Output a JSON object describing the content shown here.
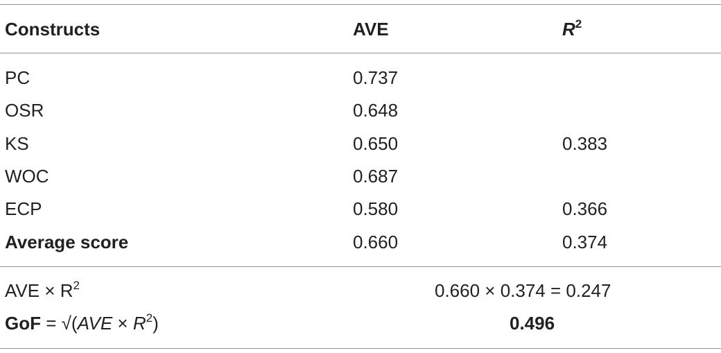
{
  "header": {
    "col1": "Constructs",
    "col2": "AVE",
    "col3_base": "R",
    "col3_sup": "2"
  },
  "rows": [
    {
      "construct": "PC",
      "ave": "0.737",
      "r2": ""
    },
    {
      "construct": "OSR",
      "ave": "0.648",
      "r2": ""
    },
    {
      "construct": "KS",
      "ave": "0.650",
      "r2": "0.383"
    },
    {
      "construct": "WOC",
      "ave": "0.687",
      "r2": ""
    },
    {
      "construct": "ECP",
      "ave": "0.580",
      "r2": "0.366"
    },
    {
      "construct": "Average score",
      "ave": "0.660",
      "r2": "0.374"
    }
  ],
  "product_row": {
    "label_base": "AVE × R",
    "label_sup": "2",
    "value": "0.660 × 0.374 = 0.247"
  },
  "gof_row": {
    "label_bold": "GoF",
    "label_eq": " = ",
    "sqrt_symbol": "√",
    "paren_open": "(",
    "ave": "AVE",
    "times": " × ",
    "r": "R",
    "r_sup": "2",
    "paren_close": ")",
    "value": "0.496"
  }
}
